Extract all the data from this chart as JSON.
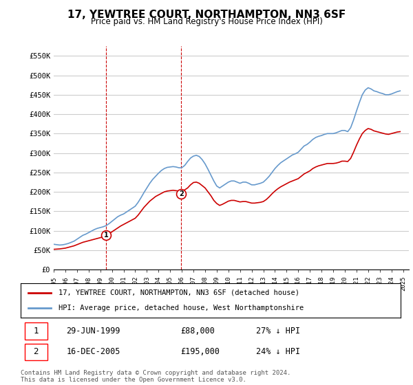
{
  "title": "17, YEWTREE COURT, NORTHAMPTON, NN3 6SF",
  "subtitle": "Price paid vs. HM Land Registry's House Price Index (HPI)",
  "legend_label_red": "17, YEWTREE COURT, NORTHAMPTON, NN3 6SF (detached house)",
  "legend_label_blue": "HPI: Average price, detached house, West Northamptonshire",
  "transaction1_label": "1",
  "transaction1_date": "29-JUN-1999",
  "transaction1_price": "£88,000",
  "transaction1_hpi": "27% ↓ HPI",
  "transaction1_year": 1999.49,
  "transaction2_label": "2",
  "transaction2_date": "16-DEC-2005",
  "transaction2_price": "£195,000",
  "transaction2_hpi": "24% ↓ HPI",
  "transaction2_year": 2005.96,
  "ylim": [
    0,
    575000
  ],
  "xlim_start": 1995.0,
  "xlim_end": 2025.5,
  "yticks": [
    0,
    50000,
    100000,
    150000,
    200000,
    250000,
    300000,
    350000,
    400000,
    450000,
    500000,
    550000
  ],
  "ytick_labels": [
    "£0",
    "£50K",
    "£100K",
    "£150K",
    "£200K",
    "£250K",
    "£300K",
    "£350K",
    "£400K",
    "£450K",
    "£500K",
    "£550K"
  ],
  "xticks": [
    1995,
    1996,
    1997,
    1998,
    1999,
    2000,
    2001,
    2002,
    2003,
    2004,
    2005,
    2006,
    2007,
    2008,
    2009,
    2010,
    2011,
    2012,
    2013,
    2014,
    2015,
    2016,
    2017,
    2018,
    2019,
    2020,
    2021,
    2022,
    2023,
    2024,
    2025
  ],
  "red_color": "#cc0000",
  "blue_color": "#6699cc",
  "vline_color": "#cc0000",
  "grid_color": "#cccccc",
  "bg_color": "#ffffff",
  "footnote": "Contains HM Land Registry data © Crown copyright and database right 2024.\nThis data is licensed under the Open Government Licence v3.0.",
  "hpi_data_x": [
    1995.0,
    1995.25,
    1995.5,
    1995.75,
    1996.0,
    1996.25,
    1996.5,
    1996.75,
    1997.0,
    1997.25,
    1997.5,
    1997.75,
    1998.0,
    1998.25,
    1998.5,
    1998.75,
    1999.0,
    1999.25,
    1999.5,
    1999.75,
    2000.0,
    2000.25,
    2000.5,
    2000.75,
    2001.0,
    2001.25,
    2001.5,
    2001.75,
    2002.0,
    2002.25,
    2002.5,
    2002.75,
    2003.0,
    2003.25,
    2003.5,
    2003.75,
    2004.0,
    2004.25,
    2004.5,
    2004.75,
    2005.0,
    2005.25,
    2005.5,
    2005.75,
    2006.0,
    2006.25,
    2006.5,
    2006.75,
    2007.0,
    2007.25,
    2007.5,
    2007.75,
    2008.0,
    2008.25,
    2008.5,
    2008.75,
    2009.0,
    2009.25,
    2009.5,
    2009.75,
    2010.0,
    2010.25,
    2010.5,
    2010.75,
    2011.0,
    2011.25,
    2011.5,
    2011.75,
    2012.0,
    2012.25,
    2012.5,
    2012.75,
    2013.0,
    2013.25,
    2013.5,
    2013.75,
    2014.0,
    2014.25,
    2014.5,
    2014.75,
    2015.0,
    2015.25,
    2015.5,
    2015.75,
    2016.0,
    2016.25,
    2016.5,
    2016.75,
    2017.0,
    2017.25,
    2017.5,
    2017.75,
    2018.0,
    2018.25,
    2018.5,
    2018.75,
    2019.0,
    2019.25,
    2019.5,
    2019.75,
    2020.0,
    2020.25,
    2020.5,
    2020.75,
    2021.0,
    2021.25,
    2021.5,
    2021.75,
    2022.0,
    2022.25,
    2022.5,
    2022.75,
    2023.0,
    2023.25,
    2023.5,
    2023.75,
    2024.0,
    2024.25,
    2024.5,
    2024.75
  ],
  "hpi_data_y": [
    65000,
    64000,
    63000,
    63500,
    65000,
    67000,
    70000,
    73000,
    78000,
    83000,
    88000,
    91000,
    95000,
    99000,
    103000,
    106000,
    108000,
    110000,
    113000,
    118000,
    124000,
    130000,
    136000,
    140000,
    143000,
    148000,
    153000,
    158000,
    163000,
    173000,
    185000,
    198000,
    210000,
    222000,
    232000,
    240000,
    248000,
    255000,
    260000,
    263000,
    264000,
    265000,
    264000,
    262000,
    262000,
    268000,
    278000,
    287000,
    292000,
    294000,
    291000,
    283000,
    272000,
    258000,
    243000,
    228000,
    215000,
    210000,
    215000,
    220000,
    225000,
    228000,
    228000,
    225000,
    222000,
    225000,
    225000,
    222000,
    218000,
    218000,
    220000,
    222000,
    225000,
    232000,
    240000,
    250000,
    260000,
    268000,
    275000,
    280000,
    285000,
    290000,
    295000,
    298000,
    302000,
    310000,
    318000,
    322000,
    328000,
    335000,
    340000,
    343000,
    345000,
    348000,
    350000,
    350000,
    350000,
    352000,
    355000,
    358000,
    358000,
    355000,
    365000,
    385000,
    408000,
    430000,
    450000,
    462000,
    468000,
    465000,
    460000,
    458000,
    455000,
    453000,
    450000,
    450000,
    452000,
    455000,
    458000,
    460000
  ],
  "red_data_x": [
    1995.0,
    1995.25,
    1995.5,
    1995.75,
    1996.0,
    1996.25,
    1996.5,
    1996.75,
    1997.0,
    1997.25,
    1997.5,
    1997.75,
    1998.0,
    1998.25,
    1998.5,
    1998.75,
    1999.0,
    1999.25,
    1999.5,
    1999.75,
    2000.0,
    2000.25,
    2000.5,
    2000.75,
    2001.0,
    2001.25,
    2001.5,
    2001.75,
    2002.0,
    2002.25,
    2002.5,
    2002.75,
    2003.0,
    2003.25,
    2003.5,
    2003.75,
    2004.0,
    2004.25,
    2004.5,
    2004.75,
    2005.0,
    2005.25,
    2005.5,
    2005.75,
    2006.0,
    2006.25,
    2006.5,
    2006.75,
    2007.0,
    2007.25,
    2007.5,
    2007.75,
    2008.0,
    2008.25,
    2008.5,
    2008.75,
    2009.0,
    2009.25,
    2009.5,
    2009.75,
    2010.0,
    2010.25,
    2010.5,
    2010.75,
    2011.0,
    2011.25,
    2011.5,
    2011.75,
    2012.0,
    2012.25,
    2012.5,
    2012.75,
    2013.0,
    2013.25,
    2013.5,
    2013.75,
    2014.0,
    2014.25,
    2014.5,
    2014.75,
    2015.0,
    2015.25,
    2015.5,
    2015.75,
    2016.0,
    2016.25,
    2016.5,
    2016.75,
    2017.0,
    2017.25,
    2017.5,
    2017.75,
    2018.0,
    2018.25,
    2018.5,
    2018.75,
    2019.0,
    2019.25,
    2019.5,
    2019.75,
    2020.0,
    2020.25,
    2020.5,
    2020.75,
    2021.0,
    2021.25,
    2021.5,
    2021.75,
    2022.0,
    2022.25,
    2022.5,
    2022.75,
    2023.0,
    2023.25,
    2023.5,
    2023.75,
    2024.0,
    2024.25,
    2024.5,
    2024.75
  ],
  "red_data_y": [
    52000,
    52500,
    53000,
    54000,
    55000,
    57000,
    59000,
    61000,
    64000,
    67000,
    70000,
    72000,
    74000,
    76000,
    78000,
    80000,
    82000,
    84000,
    88000,
    92000,
    97000,
    102000,
    107000,
    112000,
    116000,
    120000,
    124000,
    128000,
    132000,
    140000,
    150000,
    160000,
    168000,
    176000,
    182000,
    188000,
    192000,
    196000,
    200000,
    202000,
    203000,
    204000,
    203000,
    202000,
    202000,
    205000,
    210000,
    218000,
    224000,
    225000,
    222000,
    216000,
    210000,
    200000,
    190000,
    178000,
    170000,
    165000,
    168000,
    172000,
    176000,
    178000,
    178000,
    176000,
    174000,
    175000,
    175000,
    173000,
    171000,
    171000,
    172000,
    173000,
    175000,
    180000,
    187000,
    195000,
    202000,
    208000,
    213000,
    217000,
    221000,
    225000,
    228000,
    231000,
    234000,
    240000,
    246000,
    250000,
    254000,
    260000,
    264000,
    267000,
    269000,
    271000,
    273000,
    273000,
    273000,
    274000,
    276000,
    279000,
    279000,
    278000,
    286000,
    302000,
    320000,
    336000,
    350000,
    358000,
    363000,
    361000,
    357000,
    355000,
    353000,
    351000,
    349000,
    348000,
    350000,
    352000,
    354000,
    355000
  ],
  "transaction1_x": 1999.49,
  "transaction1_y": 88000,
  "transaction2_x": 2005.96,
  "transaction2_y": 195000
}
